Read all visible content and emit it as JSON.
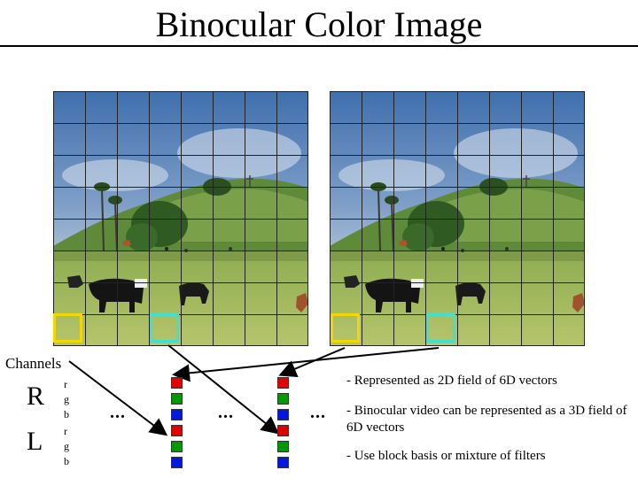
{
  "title": "Binocular Color Image",
  "channels_label": "Channels",
  "eyes": [
    {
      "letter": "R",
      "subs": [
        "r",
        "g",
        "b"
      ]
    },
    {
      "letter": "L",
      "subs": [
        "r",
        "g",
        "b"
      ]
    }
  ],
  "ellipsis": "...",
  "notes": [
    "- Represented as 2D field of 6D vectors",
    "- Binocular video can be represented as a 3D field of 6D vectors",
    "- Use block basis or mixture of filters"
  ],
  "colors": {
    "yellow_block": "#f0d800",
    "cyan_block": "#3fe0d0",
    "red": "#e00000",
    "green": "#009a00",
    "blue": "#0018e0"
  }
}
